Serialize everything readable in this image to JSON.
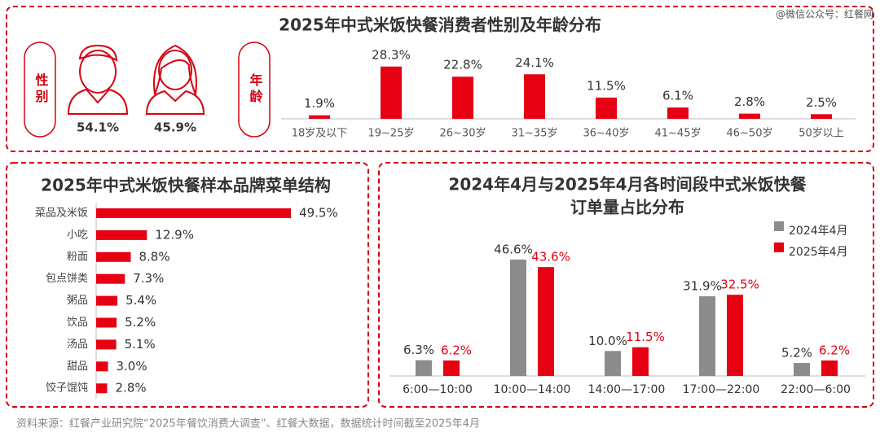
{
  "chart_data": [
    {
      "type": "pictogram",
      "title": "2025年中式米饭快餐消费者性别及年龄分布",
      "label": "性别",
      "values": [
        54.1,
        45.9
      ],
      "value_labels": [
        "54.1%",
        "45.9%"
      ],
      "color": "#d7000f"
    },
    {
      "type": "bar",
      "label": "年龄",
      "categories": [
        "18岁及以下",
        "19~25岁",
        "26~30岁",
        "31~35岁",
        "36~40岁",
        "41~45岁",
        "46~50岁",
        "50岁以上"
      ],
      "values": [
        1.9,
        28.3,
        22.8,
        24.1,
        11.5,
        6.1,
        2.8,
        2.5
      ],
      "value_labels": [
        "1.9%",
        "28.3%",
        "22.8%",
        "24.1%",
        "11.5%",
        "6.1%",
        "2.8%",
        "2.5%"
      ],
      "color": "#e60012"
    },
    {
      "type": "hbar",
      "title": "2025年中式米饭快餐样本品牌菜单结构",
      "categories": [
        "菜品及米饭",
        "小吃",
        "粉面",
        "包点饼类",
        "粥品",
        "饮品",
        "汤品",
        "甜品",
        "饺子馄饨"
      ],
      "values": [
        49.5,
        12.9,
        8.8,
        7.3,
        5.4,
        5.2,
        5.1,
        3.0,
        2.8
      ],
      "value_labels": [
        "49.5%",
        "12.9%",
        "8.8%",
        "7.3%",
        "5.4%",
        "5.2%",
        "5.1%",
        "3.0%",
        "2.8%"
      ],
      "color": "#e60012"
    },
    {
      "type": "grouped_bar",
      "title": [
        "2024年4月与2025年4月各时间段中式米饭快餐",
        "订单量占比分布"
      ],
      "categories": [
        "6:00—10:00",
        "10:00—14:00",
        "14:00—17:00",
        "17:00—22:00",
        "22:00—6:00"
      ],
      "series": [
        {
          "name": "2024年4月",
          "color": "#8c8c8c",
          "values": [
            6.3,
            46.6,
            10.0,
            31.9,
            5.2
          ],
          "value_labels": [
            "6.3%",
            "46.6%",
            "10.0%",
            "31.9%",
            "5.2%"
          ]
        },
        {
          "name": "2025年4月",
          "color": "#e60012",
          "values": [
            6.2,
            43.6,
            11.5,
            32.5,
            6.2
          ],
          "value_labels": [
            "6.2%",
            "43.6%",
            "11.5%",
            "32.5%",
            "6.2%"
          ]
        }
      ],
      "legend": "top-right"
    }
  ],
  "watermark": "@微信公众号：红餐网",
  "source": "资料来源：红餐产业研究院“2025年餐饮消费大调查”、红餐大数据，数据统计时间截至2025年4月"
}
